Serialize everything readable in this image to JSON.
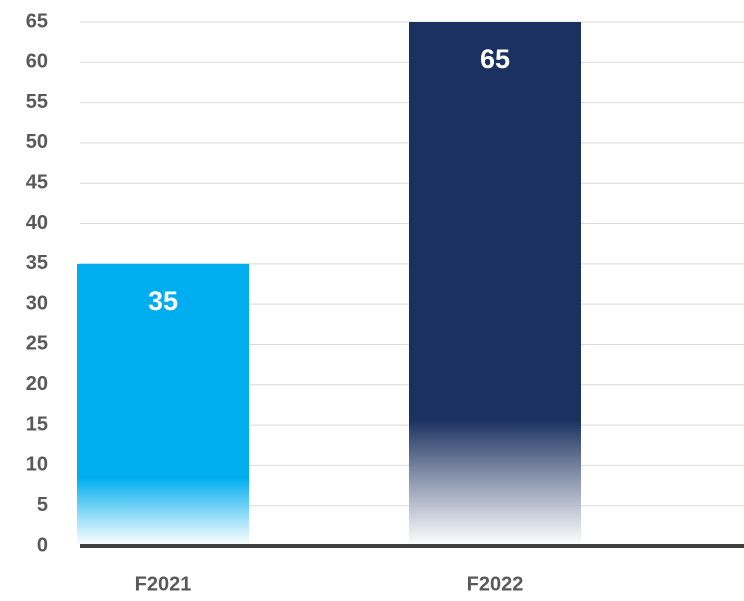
{
  "chart_data": {
    "type": "bar",
    "categories": [
      "F2021",
      "F2022"
    ],
    "values": [
      35,
      65
    ],
    "colors": [
      "#00aeef",
      "#1b3160"
    ],
    "ylim": [
      0,
      65
    ],
    "yticks": [
      0,
      5,
      10,
      15,
      20,
      25,
      30,
      35,
      40,
      45,
      50,
      55,
      60,
      65
    ],
    "grid": true
  }
}
